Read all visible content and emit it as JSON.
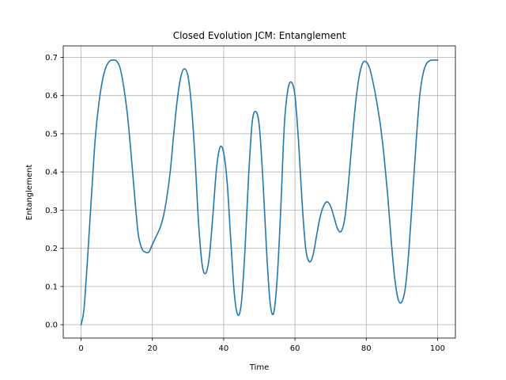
{
  "chart_data": {
    "type": "line",
    "title": "Closed Evolution JCM: Entanglement",
    "xlabel": "Time",
    "ylabel": "Entanglement",
    "xlim": [
      -5,
      105
    ],
    "ylim": [
      -0.035,
      0.73
    ],
    "xticks": [
      0,
      20,
      40,
      60,
      80,
      100
    ],
    "yticks": [
      0.0,
      0.1,
      0.2,
      0.3,
      0.4,
      0.5,
      0.6,
      0.7
    ],
    "grid": true,
    "series": [
      {
        "color": "#1f77b4",
        "x": [
          0,
          0.5,
          1,
          2,
          3,
          4,
          5,
          6,
          7,
          8,
          9,
          10,
          11,
          12,
          13,
          14,
          15,
          16,
          17,
          18,
          19,
          20,
          21,
          22,
          23,
          24,
          25,
          26,
          27,
          28,
          29,
          30,
          31,
          32,
          33,
          34,
          35,
          36,
          37,
          38,
          39,
          40,
          41,
          42,
          43,
          44,
          45,
          46,
          47,
          48,
          49,
          50,
          51,
          52,
          53,
          54,
          55,
          56,
          57,
          58,
          59,
          60,
          61,
          62,
          63,
          64,
          65,
          66,
          67,
          68,
          69,
          70,
          71,
          72,
          73,
          74,
          75,
          76,
          77,
          78,
          79,
          80,
          81,
          82,
          83,
          84,
          85,
          86,
          87,
          88,
          89,
          90,
          91,
          92,
          93,
          94,
          95,
          96,
          97,
          98,
          99,
          100
        ],
        "y": [
          0.0,
          0.02,
          0.06,
          0.2,
          0.35,
          0.49,
          0.58,
          0.64,
          0.675,
          0.69,
          0.693,
          0.69,
          0.67,
          0.62,
          0.55,
          0.45,
          0.34,
          0.24,
          0.2,
          0.19,
          0.19,
          0.21,
          0.23,
          0.25,
          0.28,
          0.33,
          0.4,
          0.5,
          0.59,
          0.65,
          0.67,
          0.65,
          0.57,
          0.43,
          0.26,
          0.155,
          0.135,
          0.18,
          0.29,
          0.41,
          0.465,
          0.45,
          0.37,
          0.22,
          0.08,
          0.025,
          0.06,
          0.2,
          0.39,
          0.53,
          0.558,
          0.52,
          0.38,
          0.2,
          0.06,
          0.03,
          0.12,
          0.3,
          0.52,
          0.615,
          0.635,
          0.6,
          0.48,
          0.32,
          0.2,
          0.165,
          0.18,
          0.23,
          0.28,
          0.31,
          0.322,
          0.31,
          0.28,
          0.25,
          0.245,
          0.28,
          0.37,
          0.48,
          0.58,
          0.65,
          0.685,
          0.688,
          0.67,
          0.63,
          0.58,
          0.52,
          0.44,
          0.34,
          0.22,
          0.12,
          0.065,
          0.06,
          0.1,
          0.2,
          0.34,
          0.48,
          0.6,
          0.66,
          0.685,
          0.692,
          0.693,
          0.693
        ]
      }
    ]
  }
}
